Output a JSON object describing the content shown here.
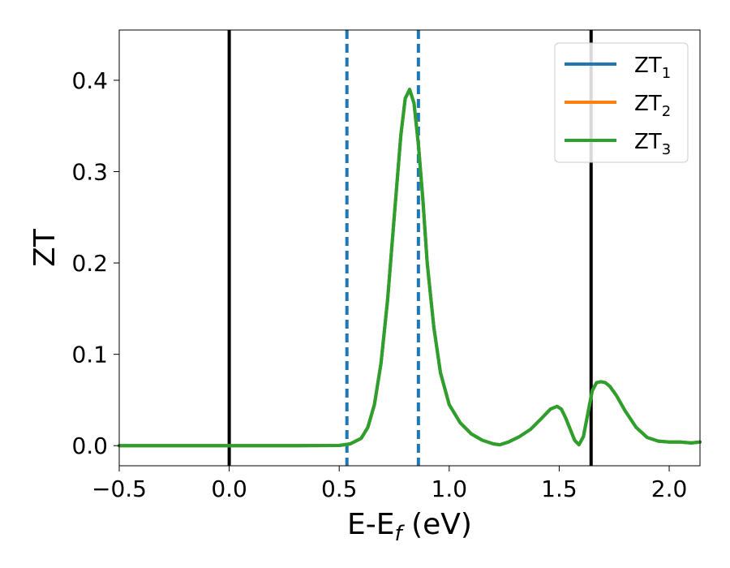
{
  "chart_data": {
    "type": "line",
    "xlabel": {
      "main": "E-E",
      "sub": "f",
      "suffix": " (eV)"
    },
    "ylabel": "ZT",
    "xlim": [
      -0.5,
      2.14
    ],
    "ylim": [
      -0.022,
      0.455
    ],
    "xticks": [
      -0.5,
      0.0,
      0.5,
      1.0,
      1.5,
      2.0
    ],
    "xtick_labels": [
      "−0.5",
      "0.0",
      "0.5",
      "1.0",
      "1.5",
      "2.0"
    ],
    "yticks": [
      0.0,
      0.1,
      0.2,
      0.3,
      0.4
    ],
    "ytick_labels": [
      "0.0",
      "0.1",
      "0.2",
      "0.3",
      "0.4"
    ],
    "grid": false,
    "legend_position": "top-right",
    "vlines": [
      {
        "x": 0.0,
        "style": "solid",
        "color": "#000000"
      },
      {
        "x": 1.645,
        "style": "solid",
        "color": "#000000"
      },
      {
        "x": 0.535,
        "style": "dashed",
        "color": "#1f77b4"
      },
      {
        "x": 0.86,
        "style": "dashed",
        "color": "#1f77b4"
      }
    ],
    "x": [
      -0.5,
      -0.3,
      -0.1,
      0.1,
      0.3,
      0.5,
      0.55,
      0.6,
      0.63,
      0.66,
      0.69,
      0.72,
      0.75,
      0.78,
      0.8,
      0.82,
      0.84,
      0.86,
      0.88,
      0.9,
      0.93,
      0.96,
      1.0,
      1.05,
      1.1,
      1.15,
      1.2,
      1.23,
      1.27,
      1.32,
      1.37,
      1.42,
      1.46,
      1.49,
      1.51,
      1.53,
      1.55,
      1.57,
      1.59,
      1.61,
      1.63,
      1.65,
      1.67,
      1.69,
      1.71,
      1.73,
      1.76,
      1.8,
      1.85,
      1.9,
      1.95,
      2.0,
      2.05,
      2.1,
      2.14
    ],
    "series": [
      {
        "name": "ZT",
        "sub": "1",
        "color": "#1f77b4",
        "values": [
          0,
          0,
          0,
          0,
          0,
          0.0002,
          0.002,
          0.008,
          0.02,
          0.045,
          0.09,
          0.16,
          0.25,
          0.34,
          0.38,
          0.39,
          0.375,
          0.33,
          0.27,
          0.2,
          0.13,
          0.08,
          0.045,
          0.025,
          0.013,
          0.006,
          0.002,
          0.001,
          0.004,
          0.01,
          0.018,
          0.03,
          0.04,
          0.043,
          0.04,
          0.03,
          0.018,
          0.006,
          0.001,
          0.01,
          0.035,
          0.06,
          0.069,
          0.07,
          0.069,
          0.065,
          0.055,
          0.038,
          0.02,
          0.009,
          0.005,
          0.004,
          0.004,
          0.003,
          0.004
        ]
      },
      {
        "name": "ZT",
        "sub": "2",
        "color": "#ff7f0e",
        "values": [
          0,
          0,
          0,
          0,
          0,
          0.0002,
          0.002,
          0.008,
          0.02,
          0.045,
          0.09,
          0.16,
          0.25,
          0.34,
          0.38,
          0.39,
          0.375,
          0.33,
          0.27,
          0.2,
          0.13,
          0.08,
          0.045,
          0.025,
          0.013,
          0.006,
          0.002,
          0.001,
          0.004,
          0.01,
          0.018,
          0.03,
          0.04,
          0.043,
          0.04,
          0.03,
          0.018,
          0.006,
          0.001,
          0.01,
          0.035,
          0.06,
          0.069,
          0.07,
          0.069,
          0.065,
          0.055,
          0.038,
          0.02,
          0.009,
          0.005,
          0.004,
          0.004,
          0.003,
          0.004
        ]
      },
      {
        "name": "ZT",
        "sub": "3",
        "color": "#2ca02c",
        "values": [
          0,
          0,
          0,
          0,
          0,
          0.0002,
          0.002,
          0.008,
          0.02,
          0.045,
          0.09,
          0.16,
          0.25,
          0.34,
          0.38,
          0.39,
          0.375,
          0.33,
          0.27,
          0.2,
          0.13,
          0.08,
          0.045,
          0.025,
          0.013,
          0.006,
          0.002,
          0.001,
          0.004,
          0.01,
          0.018,
          0.03,
          0.04,
          0.043,
          0.04,
          0.03,
          0.018,
          0.006,
          0.001,
          0.01,
          0.035,
          0.06,
          0.069,
          0.07,
          0.069,
          0.065,
          0.055,
          0.038,
          0.02,
          0.009,
          0.005,
          0.004,
          0.004,
          0.003,
          0.004
        ]
      }
    ]
  }
}
